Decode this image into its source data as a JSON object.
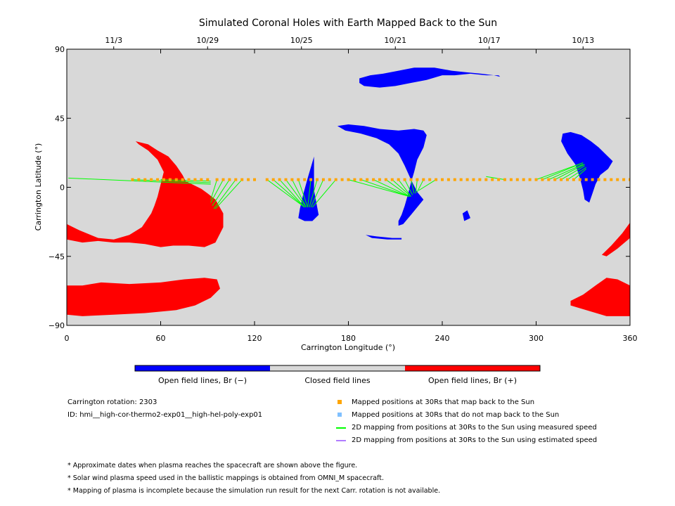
{
  "colors": {
    "closed": "#d8d8d8",
    "open_negative": "#0000ff",
    "open_positive": "#ff0000",
    "mapped_ok": "#ffa500",
    "mapped_not_ok": "#80c0ff",
    "measured_speed": "#00ff00",
    "estimated_speed": "#b07cff"
  },
  "chart_data": {
    "type": "map",
    "title": "Simulated Coronal Holes with Earth Mapped Back to the Sun",
    "xlabel": "Carrington Longitude (°)",
    "ylabel": "Carrington Latitude (°)",
    "xlim": [
      0,
      360
    ],
    "ylim": [
      -90,
      90
    ],
    "x_ticks": [
      0,
      60,
      120,
      180,
      240,
      300,
      360
    ],
    "y_ticks": [
      -90,
      -45,
      0,
      45,
      90
    ],
    "y_tick_labels": [
      "−90",
      "−45",
      "0",
      "45",
      "90"
    ],
    "top_axis_dates": [
      {
        "label": "11/3",
        "lon": 30
      },
      {
        "label": "10/29",
        "lon": 90
      },
      {
        "label": "10/25",
        "lon": 150
      },
      {
        "label": "10/21",
        "lon": 210
      },
      {
        "label": "10/17",
        "lon": 270
      },
      {
        "label": "10/13",
        "lon": 330
      }
    ],
    "regions": [
      {
        "polarity": "negative",
        "points": [
          [
            187,
            71
          ],
          [
            194,
            73
          ],
          [
            202,
            74
          ],
          [
            212,
            76
          ],
          [
            222,
            78
          ],
          [
            235,
            78
          ],
          [
            246,
            76
          ],
          [
            255,
            75
          ],
          [
            265,
            74
          ],
          [
            273,
            73
          ],
          [
            277,
            72
          ],
          [
            276,
            73
          ],
          [
            268,
            73
          ],
          [
            258,
            74
          ],
          [
            248,
            73
          ],
          [
            240,
            73
          ],
          [
            230,
            70
          ],
          [
            220,
            68
          ],
          [
            210,
            66
          ],
          [
            200,
            65
          ],
          [
            190,
            66
          ],
          [
            187,
            68
          ]
        ]
      },
      {
        "polarity": "negative",
        "points": [
          [
            173,
            40
          ],
          [
            180,
            41
          ],
          [
            190,
            40
          ],
          [
            200,
            38
          ],
          [
            212,
            37
          ],
          [
            222,
            38
          ],
          [
            228,
            37
          ],
          [
            230,
            34
          ],
          [
            228,
            26
          ],
          [
            224,
            18
          ],
          [
            222,
            10
          ],
          [
            220,
            3
          ],
          [
            218,
            -5
          ],
          [
            216,
            -12
          ],
          [
            214,
            -18
          ],
          [
            212,
            -22
          ],
          [
            212,
            -25
          ],
          [
            215,
            -24
          ],
          [
            220,
            -18
          ],
          [
            228,
            -8
          ],
          [
            224,
            -3
          ],
          [
            220,
            5
          ],
          [
            216,
            14
          ],
          [
            212,
            22
          ],
          [
            206,
            28
          ],
          [
            198,
            32
          ],
          [
            188,
            35
          ],
          [
            178,
            37
          ]
        ]
      },
      {
        "polarity": "negative",
        "points": [
          [
            149,
            -14
          ],
          [
            151,
            -5
          ],
          [
            154,
            6
          ],
          [
            156,
            13
          ],
          [
            158,
            20
          ],
          [
            158,
            10
          ],
          [
            158,
            -2
          ],
          [
            161,
            -18
          ],
          [
            157,
            -22
          ],
          [
            152,
            -22
          ],
          [
            148,
            -20
          ]
        ]
      },
      {
        "polarity": "negative",
        "points": [
          [
            191,
            -31
          ],
          [
            198,
            -32
          ],
          [
            208,
            -33
          ],
          [
            214,
            -33
          ],
          [
            214,
            -34
          ],
          [
            205,
            -34
          ],
          [
            195,
            -33
          ]
        ]
      },
      {
        "polarity": "negative",
        "points": [
          [
            256,
            -15
          ],
          [
            258,
            -20
          ],
          [
            254,
            -22
          ],
          [
            253,
            -17
          ]
        ]
      },
      {
        "polarity": "negative",
        "points": [
          [
            317,
            35
          ],
          [
            322,
            36
          ],
          [
            329,
            34
          ],
          [
            335,
            30
          ],
          [
            340,
            26
          ],
          [
            344,
            22
          ],
          [
            349,
            17
          ],
          [
            346,
            12
          ],
          [
            341,
            8
          ],
          [
            338,
            2
          ],
          [
            336,
            -4
          ],
          [
            334,
            -10
          ],
          [
            331,
            -8
          ],
          [
            330,
            -2
          ],
          [
            328,
            6
          ],
          [
            325,
            15
          ],
          [
            320,
            22
          ],
          [
            316,
            30
          ]
        ]
      },
      {
        "polarity": "positive",
        "points": [
          [
            44,
            30
          ],
          [
            52,
            28
          ],
          [
            58,
            24
          ],
          [
            65,
            20
          ],
          [
            70,
            14
          ],
          [
            74,
            8
          ],
          [
            76,
            4
          ],
          [
            80,
            2
          ],
          [
            86,
            -1
          ],
          [
            90,
            -4
          ],
          [
            95,
            -8
          ],
          [
            100,
            -17
          ],
          [
            100,
            -26
          ],
          [
            95,
            -36
          ],
          [
            88,
            -39
          ],
          [
            78,
            -38
          ],
          [
            68,
            -38
          ],
          [
            60,
            -39
          ],
          [
            50,
            -37
          ],
          [
            40,
            -36
          ],
          [
            30,
            -36
          ],
          [
            20,
            -35
          ],
          [
            10,
            -36
          ],
          [
            0,
            -34
          ],
          [
            0,
            -24
          ],
          [
            8,
            -28
          ],
          [
            20,
            -33
          ],
          [
            30,
            -34
          ],
          [
            40,
            -31
          ],
          [
            48,
            -26
          ],
          [
            54,
            -17
          ],
          [
            56,
            -12
          ],
          [
            58,
            -6
          ],
          [
            60,
            2
          ],
          [
            62,
            10
          ],
          [
            58,
            18
          ],
          [
            52,
            24
          ],
          [
            46,
            28
          ]
        ]
      },
      {
        "polarity": "positive",
        "points": [
          [
            0,
            -64
          ],
          [
            10,
            -64
          ],
          [
            22,
            -62
          ],
          [
            40,
            -63
          ],
          [
            60,
            -62
          ],
          [
            75,
            -60
          ],
          [
            88,
            -59
          ],
          [
            96,
            -60
          ],
          [
            98,
            -66
          ],
          [
            92,
            -72
          ],
          [
            82,
            -77
          ],
          [
            70,
            -80
          ],
          [
            50,
            -82
          ],
          [
            30,
            -83
          ],
          [
            10,
            -84
          ],
          [
            0,
            -83
          ]
        ]
      },
      {
        "polarity": "positive",
        "points": [
          [
            322,
            -74
          ],
          [
            330,
            -70
          ],
          [
            338,
            -64
          ],
          [
            345,
            -59
          ],
          [
            352,
            -60
          ],
          [
            360,
            -64
          ],
          [
            360,
            -84
          ],
          [
            345,
            -84
          ],
          [
            332,
            -80
          ],
          [
            322,
            -77
          ]
        ]
      },
      {
        "polarity": "positive",
        "points": [
          [
            360,
            -23
          ],
          [
            355,
            -30
          ],
          [
            348,
            -38
          ],
          [
            342,
            -44
          ],
          [
            345,
            -45
          ],
          [
            352,
            -40
          ],
          [
            360,
            -33
          ]
        ]
      }
    ],
    "mapped_points_lat": 5,
    "mapped_points_lon": [
      42,
      46,
      50,
      54,
      58,
      62,
      66,
      70,
      74,
      78,
      82,
      86,
      90,
      96,
      100,
      104,
      108,
      112,
      116,
      120,
      128,
      132,
      136,
      140,
      144,
      148,
      152,
      156,
      160,
      164,
      168,
      172,
      176,
      180,
      184,
      188,
      192,
      196,
      200,
      204,
      208,
      212,
      216,
      220,
      224,
      228,
      232,
      236,
      240,
      244,
      248,
      252,
      256,
      260,
      264,
      268,
      272,
      276,
      280,
      284,
      288,
      292,
      296,
      300,
      304,
      308,
      312,
      316,
      320,
      324,
      328,
      332,
      336,
      340,
      344,
      348,
      352,
      356,
      360
    ],
    "mapped_points_not_ok_lon": [],
    "fieldlines_measured": [
      {
        "from": [
          1,
          6
        ],
        "to": [
          92,
          2
        ]
      },
      {
        "from": [
          42,
          5
        ],
        "to": [
          92,
          3
        ]
      },
      {
        "from": [
          60,
          5
        ],
        "to": [
          92,
          4
        ]
      },
      {
        "from": [
          96,
          5
        ],
        "to": [
          92,
          -8
        ]
      },
      {
        "from": [
          100,
          5
        ],
        "to": [
          92,
          -10
        ]
      },
      {
        "from": [
          104,
          5
        ],
        "to": [
          93,
          -12
        ]
      },
      {
        "from": [
          108,
          5
        ],
        "to": [
          94,
          -14
        ]
      },
      {
        "from": [
          112,
          5
        ],
        "to": [
          95,
          -14
        ]
      },
      {
        "from": [
          128,
          5
        ],
        "to": [
          152,
          -13
        ]
      },
      {
        "from": [
          132,
          5
        ],
        "to": [
          152,
          -13
        ]
      },
      {
        "from": [
          136,
          5
        ],
        "to": [
          152,
          -13
        ]
      },
      {
        "from": [
          140,
          5
        ],
        "to": [
          153,
          -13
        ]
      },
      {
        "from": [
          144,
          5
        ],
        "to": [
          153,
          -13
        ]
      },
      {
        "from": [
          148,
          5
        ],
        "to": [
          154,
          -13
        ]
      },
      {
        "from": [
          156,
          5
        ],
        "to": [
          154,
          -13
        ]
      },
      {
        "from": [
          160,
          5
        ],
        "to": [
          155,
          -13
        ]
      },
      {
        "from": [
          164,
          5
        ],
        "to": [
          156,
          -13
        ]
      },
      {
        "from": [
          172,
          5
        ],
        "to": [
          157,
          -13
        ]
      },
      {
        "from": [
          180,
          5
        ],
        "to": [
          219,
          -6
        ]
      },
      {
        "from": [
          188,
          5
        ],
        "to": [
          219,
          -6
        ]
      },
      {
        "from": [
          196,
          5
        ],
        "to": [
          219,
          -6
        ]
      },
      {
        "from": [
          204,
          5
        ],
        "to": [
          219,
          -6
        ]
      },
      {
        "from": [
          208,
          5
        ],
        "to": [
          220,
          -6
        ]
      },
      {
        "from": [
          212,
          5
        ],
        "to": [
          220,
          -6
        ]
      },
      {
        "from": [
          216,
          5
        ],
        "to": [
          221,
          -5
        ]
      },
      {
        "from": [
          220,
          5
        ],
        "to": [
          222,
          -4
        ]
      },
      {
        "from": [
          224,
          5
        ],
        "to": [
          223,
          -4
        ]
      },
      {
        "from": [
          228,
          5
        ],
        "to": [
          224,
          -3
        ]
      },
      {
        "from": [
          236,
          5
        ],
        "to": [
          225,
          -2
        ]
      },
      {
        "from": [
          268,
          7
        ],
        "to": [
          280,
          5
        ]
      },
      {
        "from": [
          300,
          5
        ],
        "to": [
          330,
          16
        ]
      },
      {
        "from": [
          304,
          5
        ],
        "to": [
          330,
          16
        ]
      },
      {
        "from": [
          308,
          5
        ],
        "to": [
          330,
          15
        ]
      },
      {
        "from": [
          312,
          5
        ],
        "to": [
          331,
          15
        ]
      },
      {
        "from": [
          316,
          5
        ],
        "to": [
          331,
          14
        ]
      },
      {
        "from": [
          320,
          5
        ],
        "to": [
          332,
          13
        ]
      },
      {
        "from": [
          324,
          5
        ],
        "to": [
          332,
          12
        ]
      }
    ]
  },
  "colorbar": {
    "label_negative": "Open field lines, Br (−)",
    "label_closed": "Closed field lines",
    "label_positive": "Open field lines, Br (+)"
  },
  "info": {
    "carrington_rotation": "Carrington rotation: 2303",
    "run_id": "ID: hmi__high-cor-thermo2-exp01__high-hel-poly-exp01"
  },
  "legend": [
    {
      "kind": "square",
      "color_key": "mapped_ok",
      "label": "Mapped positions at 30Rs that map back to the Sun"
    },
    {
      "kind": "square",
      "color_key": "mapped_not_ok",
      "label": "Mapped positions at 30Rs that do not map back to the Sun"
    },
    {
      "kind": "line",
      "color_key": "measured_speed",
      "label": "2D mapping from positions at 30Rs to the Sun using measured speed"
    },
    {
      "kind": "line",
      "color_key": "estimated_speed",
      "label": "2D mapping from positions at 30Rs to the Sun using estimated speed"
    }
  ],
  "notes": [
    "* Approximate dates when plasma reaches the spacecraft are shown above the figure.",
    "* Solar wind plasma speed used in the ballistic mappings is obtained from OMNI_M spacecraft.",
    "* Mapping of plasma is incomplete because the simulation run result for the next Carr. rotation is not available."
  ]
}
